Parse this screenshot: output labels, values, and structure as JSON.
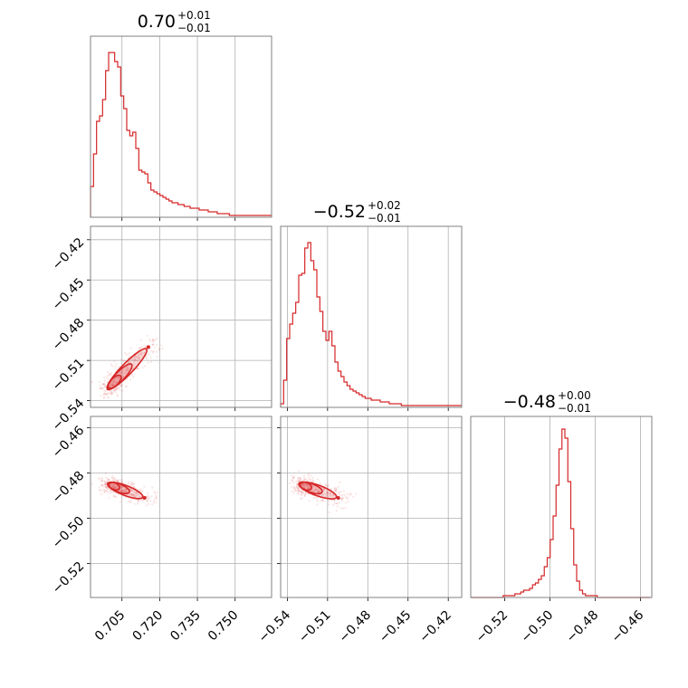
{
  "chart_data": {
    "type": "corner",
    "color": "#d62728",
    "parameters": [
      {
        "title": {
          "median": "0.70",
          "upper": "+0.01",
          "lower": "−0.01"
        },
        "range": [
          0.6925,
          0.7645
        ],
        "ticks": [
          0.705,
          0.72,
          0.735,
          0.75
        ],
        "tick_labels": [
          "0.705",
          "0.720",
          "0.735",
          "0.750"
        ],
        "hist_edges_start": 0.6925,
        "hist_bin_width": 0.0012,
        "hist": [
          0.17,
          0.35,
          0.53,
          0.56,
          0.65,
          0.81,
          0.91,
          0.91,
          0.86,
          0.83,
          0.67,
          0.6,
          0.48,
          0.45,
          0.47,
          0.38,
          0.26,
          0.25,
          0.24,
          0.19,
          0.15,
          0.14,
          0.13,
          0.12,
          0.11,
          0.1,
          0.09,
          0.08,
          0.08,
          0.07,
          0.07,
          0.06,
          0.06,
          0.05,
          0.05,
          0.05,
          0.04,
          0.04,
          0.04,
          0.03,
          0.03,
          0.03,
          0.02,
          0.02,
          0.02,
          0.02,
          0.01,
          0.01,
          0.01,
          0.01,
          0.01,
          0.01,
          0.01,
          0.01,
          0.01,
          0.01,
          0.01,
          0.01,
          0.01,
          0.01
        ]
      },
      {
        "title": {
          "median": "−0.52",
          "upper": "+0.02",
          "lower": "−0.01"
        },
        "range": [
          -0.545,
          -0.41
        ],
        "ticks": [
          -0.54,
          -0.51,
          -0.48,
          -0.45,
          -0.42
        ],
        "tick_labels": [
          "−0.54",
          "−0.51",
          "−0.48",
          "−0.45",
          "−0.42"
        ],
        "hist_edges_start": -0.545,
        "hist_bin_width": 0.00225,
        "hist": [
          0.02,
          0.15,
          0.38,
          0.46,
          0.52,
          0.58,
          0.73,
          0.74,
          0.88,
          0.91,
          0.81,
          0.76,
          0.61,
          0.53,
          0.42,
          0.37,
          0.42,
          0.34,
          0.25,
          0.2,
          0.17,
          0.14,
          0.12,
          0.1,
          0.09,
          0.08,
          0.07,
          0.06,
          0.05,
          0.05,
          0.04,
          0.04,
          0.04,
          0.03,
          0.03,
          0.03,
          0.02,
          0.02,
          0.02,
          0.02,
          0.01,
          0.01,
          0.01,
          0.01,
          0.01,
          0.01,
          0.01,
          0.01,
          0.01,
          0.01,
          0.01,
          0.01,
          0.01,
          0.01,
          0.01,
          0.01,
          0.01,
          0.01,
          0.01,
          0.01
        ]
      },
      {
        "title": {
          "median": "−0.48",
          "upper": "+0.00",
          "lower": "−0.01"
        },
        "range": [
          -0.535,
          -0.455
        ],
        "ticks": [
          -0.52,
          -0.5,
          -0.48,
          -0.46
        ],
        "tick_labels": [
          "−0.52",
          "−0.50",
          "−0.48",
          "−0.46"
        ],
        "hist_edges_start": -0.535,
        "hist_bin_width": 0.0013,
        "hist": [
          0.0,
          0.0,
          0.0,
          0.0,
          0.0,
          0.0,
          0.0,
          0.0,
          0.0,
          0.0,
          0.0,
          0.01,
          0.01,
          0.01,
          0.01,
          0.02,
          0.02,
          0.03,
          0.04,
          0.04,
          0.05,
          0.07,
          0.08,
          0.1,
          0.12,
          0.17,
          0.22,
          0.32,
          0.45,
          0.62,
          0.82,
          0.93,
          0.88,
          0.64,
          0.38,
          0.18,
          0.09,
          0.04,
          0.02,
          0.01,
          0.01,
          0.01,
          0.01,
          0.0,
          0.0,
          0.0,
          0.0,
          0.0,
          0.0,
          0.0,
          0.0,
          0.0,
          0.0,
          0.0,
          0.0,
          0.0,
          0.0,
          0.0,
          0.0,
          0.0,
          0.0
        ]
      }
    ],
    "pairs": [
      {
        "x_param": 0,
        "y_param": 1,
        "mode": [
          0.7,
          -0.53
        ],
        "axis": [
          0.0155,
          0.03
        ],
        "width": [
          0.001,
          0.0018
        ]
      },
      {
        "x_param": 0,
        "y_param": 2,
        "mode": [
          0.7,
          -0.485
        ],
        "axis": [
          0.014,
          -0.006
        ],
        "width": [
          0.001,
          0.0008
        ]
      },
      {
        "x_param": 1,
        "y_param": 2,
        "mode": [
          -0.53,
          -0.485
        ],
        "axis": [
          0.028,
          -0.006
        ],
        "width": [
          0.0018,
          0.001
        ]
      }
    ],
    "contour_levels": [
      1.0,
      0.6,
      0.3
    ],
    "grid": true
  }
}
